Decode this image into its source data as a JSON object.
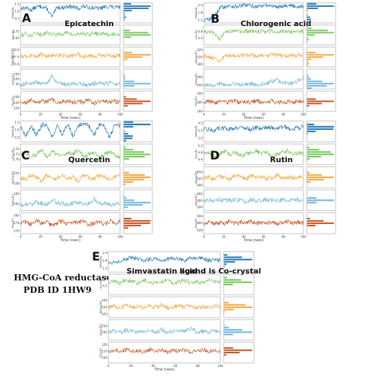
{
  "colors": {
    "rmsd": "#1f77b4",
    "rgyr": "#77c85a",
    "molsa": "#f2a63a",
    "sasa": "#6fb6dc",
    "psa": "#c5501e"
  },
  "side_note": {
    "line1": "HMG-CoA reductase",
    "line2": "PDB ID  1HW9"
  },
  "chart_data": [
    {
      "type": "line",
      "panel_letter": "A",
      "title": "Epicatechin",
      "xlabel": "Time (nsec)",
      "xlim": [
        0,
        100
      ],
      "xticks": [
        "0",
        "20",
        "40",
        "60",
        "80",
        "100"
      ],
      "series": [
        {
          "name": "RMSD(Å)",
          "key": "rmsd",
          "ylim": [
            0.2,
            1.6
          ],
          "yticks": [
            "1.5",
            "1.0",
            "0.5"
          ],
          "values": [
            1.2,
            1.25,
            1.1,
            1.3,
            1.35,
            1.2,
            0.6,
            1.3,
            1.25,
            1.35,
            1.3,
            1.2,
            1.35,
            1.3,
            1.25,
            1.2,
            1.3,
            1.35,
            1.25,
            1.3
          ]
        },
        {
          "name": "rGyr(Å)",
          "key": "rgyr",
          "ylim": [
            3.55,
            3.85
          ],
          "yticks": [
            "3.75",
            "3.65"
          ],
          "values": [
            3.7,
            3.72,
            3.69,
            3.73,
            3.7,
            3.74,
            3.71,
            3.7,
            3.72,
            3.73,
            3.7,
            3.71,
            3.72,
            3.7,
            3.73,
            3.71,
            3.72,
            3.7,
            3.72,
            3.71
          ]
        },
        {
          "name": "MolSA(Å²)",
          "key": "molsa",
          "ylim": [
            244,
            251
          ],
          "yticks": [
            "250.0",
            "247.5",
            "245.0"
          ],
          "values": [
            248,
            247.5,
            248.2,
            247.8,
            248.5,
            247.6,
            248.1,
            247.9,
            248.3,
            247.7,
            248.0,
            248.4,
            247.6,
            248.2,
            247.9,
            248.1,
            247.8,
            248.3,
            247.9,
            248.0
          ]
        },
        {
          "name": "SASA(Å²)",
          "key": "sasa",
          "ylim": [
            0,
            200
          ],
          "yticks": [
            "150",
            "100",
            "50"
          ],
          "values": [
            40,
            60,
            45,
            70,
            50,
            55,
            130,
            60,
            50,
            45,
            55,
            60,
            50,
            45,
            55,
            65,
            50,
            60,
            55,
            50
          ]
        },
        {
          "name": "PSA(Å²)",
          "key": "psa",
          "ylim": [
            215,
            250
          ],
          "yticks": [
            "240",
            "230",
            "220"
          ],
          "values": [
            232,
            230,
            235,
            228,
            233,
            231,
            236,
            229,
            232,
            234,
            230,
            233,
            231,
            235,
            229,
            232,
            234,
            230,
            233,
            231
          ]
        }
      ]
    },
    {
      "type": "line",
      "panel_letter": "B",
      "title": "Chlorogenic acid",
      "xlabel": "Time (nsec)",
      "xlim": [
        0,
        100
      ],
      "xticks": [
        "0",
        "20",
        "40",
        "60",
        "80",
        "100"
      ],
      "series": [
        {
          "name": "RMSD(Å)",
          "key": "rmsd",
          "ylim": [
            1.0,
            2.6
          ],
          "yticks": [
            "2.4",
            "1.8",
            "1.2"
          ],
          "values": [
            1.2,
            1.3,
            1.4,
            2.2,
            2.3,
            2.35,
            2.3,
            2.35,
            2.4,
            2.35,
            2.3,
            2.35,
            2.4,
            2.35,
            2.3,
            2.35,
            2.4,
            2.35,
            2.3,
            2.35
          ]
        },
        {
          "name": "rGyr(Å)",
          "key": "rgyr",
          "ylim": [
            4.0,
            5.2
          ],
          "yticks": [
            "4.8",
            "4.4"
          ],
          "values": [
            4.8,
            4.75,
            4.7,
            4.3,
            4.85,
            4.8,
            4.82,
            4.78,
            4.8,
            4.83,
            4.79,
            4.81,
            4.8,
            4.84,
            4.78,
            4.8,
            4.82,
            4.79,
            4.81,
            4.8
          ]
        },
        {
          "name": "MolSA(Å²)",
          "key": "molsa",
          "ylim": [
            296,
            324
          ],
          "yticks": [
            "320",
            "310",
            "300"
          ],
          "values": [
            312,
            310,
            308,
            302,
            313,
            312,
            311,
            313,
            312,
            314,
            311,
            313,
            312,
            314,
            313,
            312,
            311,
            313,
            312,
            313
          ]
        },
        {
          "name": "SASA(Å²)",
          "key": "sasa",
          "ylim": [
            150,
            400
          ],
          "yticks": [
            "300",
            "200"
          ],
          "values": [
            200,
            210,
            190,
            220,
            200,
            205,
            215,
            200,
            210,
            220,
            200,
            215,
            225,
            250,
            260,
            240,
            220,
            230,
            250,
            300
          ]
        },
        {
          "name": "PSA(Å²)",
          "key": "psa",
          "ylim": [
            160,
            205
          ],
          "yticks": [
            "200",
            "180",
            "160"
          ],
          "values": [
            180,
            182,
            178,
            184,
            179,
            181,
            183,
            180,
            182,
            179,
            184,
            181,
            180,
            183,
            179,
            182,
            181,
            180,
            183,
            181
          ]
        }
      ]
    },
    {
      "type": "line",
      "panel_letter": "C",
      "title": "Quercetin",
      "xlabel": "Time (nsec)",
      "xlim": [
        0,
        100
      ],
      "xticks": [
        "0",
        "20",
        "40",
        "60",
        "80",
        "100"
      ],
      "series": [
        {
          "name": "RMSD(Å)",
          "key": "rmsd",
          "ylim": [
            0.2,
            1.6
          ],
          "yticks": [
            "1.5",
            "1.0",
            "0.5"
          ],
          "values": [
            1.3,
            0.5,
            1.35,
            0.6,
            1.3,
            1.4,
            0.5,
            1.3,
            0.7,
            1.35,
            0.6,
            1.3,
            1.4,
            1.3,
            0.6,
            1.35,
            1.3,
            0.5,
            1.35,
            1.3
          ]
        },
        {
          "name": "rGyr(Å)",
          "key": "rgyr",
          "ylim": [
            3.68,
            3.76
          ],
          "yticks": [
            "3.74",
            "3.72",
            "3.70"
          ],
          "values": [
            3.72,
            3.73,
            3.71,
            3.72,
            3.74,
            3.71,
            3.73,
            3.72,
            3.71,
            3.73,
            3.72,
            3.74,
            3.71,
            3.72,
            3.73,
            3.71,
            3.72,
            3.73,
            3.72,
            3.71
          ]
        },
        {
          "name": "MolSA(Å²)",
          "key": "molsa",
          "ylim": [
            248,
            258
          ],
          "yticks": [
            "255",
            "250"
          ],
          "values": [
            253,
            252,
            254,
            253,
            251,
            254,
            252,
            253,
            254,
            252,
            253,
            251,
            254,
            253,
            252,
            254,
            253,
            252,
            253,
            254
          ]
        },
        {
          "name": "SASA(Å²)",
          "key": "sasa",
          "ylim": [
            30,
            240
          ],
          "yticks": [
            "200",
            "100"
          ],
          "values": [
            80,
            100,
            90,
            120,
            100,
            95,
            140,
            110,
            100,
            95,
            105,
            110,
            100,
            95,
            150,
            100,
            105,
            95,
            100,
            105
          ]
        },
        {
          "name": "PSA(Å²)",
          "key": "psa",
          "ylim": [
            268,
            284
          ],
          "yticks": [
            "282",
            "276",
            "270"
          ],
          "values": [
            276,
            277,
            275,
            278,
            276,
            277,
            274,
            276,
            278,
            275,
            277,
            276,
            278,
            275,
            276,
            277,
            275,
            278,
            276,
            277
          ]
        }
      ]
    },
    {
      "type": "line",
      "panel_letter": "D",
      "title": "Rutin",
      "xlabel": "Time (nsec)",
      "xlim": [
        0,
        100
      ],
      "xticks": [
        "0",
        "20",
        "40",
        "60",
        "80",
        "100"
      ],
      "series": [
        {
          "name": "RMSD(Å)",
          "key": "rmsd",
          "ylim": [
            2.0,
            4.8
          ],
          "yticks": [
            "4.5",
            "3.5",
            "2.5"
          ],
          "values": [
            3.6,
            3.7,
            3.5,
            3.9,
            3.8,
            3.7,
            3.9,
            4.0,
            3.8,
            3.7,
            3.9,
            3.8,
            4.0,
            3.9,
            3.8,
            4.0,
            3.9,
            3.7,
            3.9,
            4.0
          ]
        },
        {
          "name": "rGyr(Å)",
          "key": "rgyr",
          "ylim": [
            4.1,
            5.3
          ],
          "yticks": [
            "5.2",
            "4.8",
            "4.4"
          ],
          "values": [
            4.7,
            4.8,
            4.6,
            4.7,
            4.9,
            4.7,
            4.8,
            4.6,
            4.7,
            4.8,
            4.9,
            4.7,
            4.8,
            4.6,
            4.7,
            4.8,
            4.9,
            4.7,
            4.8,
            4.7
          ]
        },
        {
          "name": "MolSA(Å²)",
          "key": "molsa",
          "ylim": [
            590,
            670
          ],
          "yticks": [
            "650",
            "625",
            "600"
          ],
          "values": [
            625,
            630,
            620,
            635,
            628,
            622,
            640,
            630,
            625,
            635,
            628,
            632,
            625,
            630,
            638,
            626,
            630,
            628,
            632,
            627
          ]
        },
        {
          "name": "SASA(Å²)",
          "key": "sasa",
          "ylim": [
            150,
            460
          ],
          "yticks": [
            "400",
            "300",
            "200"
          ],
          "values": [
            300,
            310,
            290,
            320,
            300,
            305,
            315,
            300,
            290,
            310,
            305,
            300,
            320,
            310,
            295,
            305,
            310,
            300,
            305,
            310
          ]
        },
        {
          "name": "PSA(Å²)",
          "key": "psa",
          "ylim": [
            400,
            520
          ],
          "yticks": [
            "500",
            "460",
            "420"
          ],
          "values": [
            460,
            470,
            455,
            465,
            460,
            475,
            458,
            466,
            462,
            470,
            458,
            465,
            460,
            468,
            455,
            464,
            470,
            460,
            466,
            462
          ]
        }
      ]
    },
    {
      "type": "line",
      "panel_letter": "E",
      "title": "Simvastatin acid",
      "annotation": "ligand is Co-crystal",
      "xlabel": "Time (nsec)",
      "xlim": [
        0,
        100
      ],
      "xticks": [
        "0",
        "20",
        "40",
        "60",
        "80",
        "100"
      ],
      "series": [
        {
          "name": "RMSD(Å)",
          "key": "rmsd",
          "ylim": [
            0.9,
            2.5
          ],
          "yticks": [
            "2.4",
            "1.8",
            "1.2"
          ],
          "values": [
            1.6,
            1.7,
            1.8,
            1.9,
            2.0,
            1.9,
            1.8,
            1.9,
            2.0,
            1.8,
            1.9,
            2.0,
            1.9,
            1.8,
            2.0,
            1.9,
            2.0,
            1.8,
            1.9,
            1.8
          ]
        },
        {
          "name": "rGyr(Å)",
          "key": "rgyr",
          "ylim": [
            3.9,
            4.6
          ],
          "yticks": [
            "4.5",
            "4.2"
          ],
          "values": [
            4.3,
            4.35,
            4.3,
            4.4,
            4.35,
            4.3,
            4.4,
            4.35,
            4.3,
            4.35,
            4.4,
            4.3,
            4.35,
            4.4,
            4.3,
            4.35,
            4.3,
            4.4,
            4.35,
            4.3
          ]
        },
        {
          "name": "MolSA(Å²)",
          "key": "molsa",
          "ylim": [
            320,
            350
          ],
          "yticks": [
            "345",
            "335",
            "325"
          ],
          "values": [
            335,
            337,
            333,
            338,
            335,
            336,
            334,
            337,
            335,
            338,
            334,
            336,
            337,
            335,
            338,
            334,
            336,
            335,
            337,
            335
          ]
        },
        {
          "name": "SASA(Å²)",
          "key": "sasa",
          "ylim": [
            40,
            200
          ],
          "yticks": [
            "150",
            "100"
          ],
          "values": [
            100,
            110,
            95,
            120,
            105,
            100,
            115,
            110,
            100,
            120,
            105,
            110,
            100,
            115,
            130,
            105,
            110,
            100,
            115,
            105
          ]
        },
        {
          "name": "PSA(Å²)",
          "key": "psa",
          "ylim": [
            92,
            124
          ],
          "yticks": [
            "120",
            "110",
            "100"
          ],
          "values": [
            110,
            112,
            108,
            113,
            110,
            111,
            109,
            112,
            110,
            113,
            108,
            111,
            110,
            112,
            109,
            111,
            113,
            110,
            112,
            111
          ]
        }
      ]
    }
  ]
}
